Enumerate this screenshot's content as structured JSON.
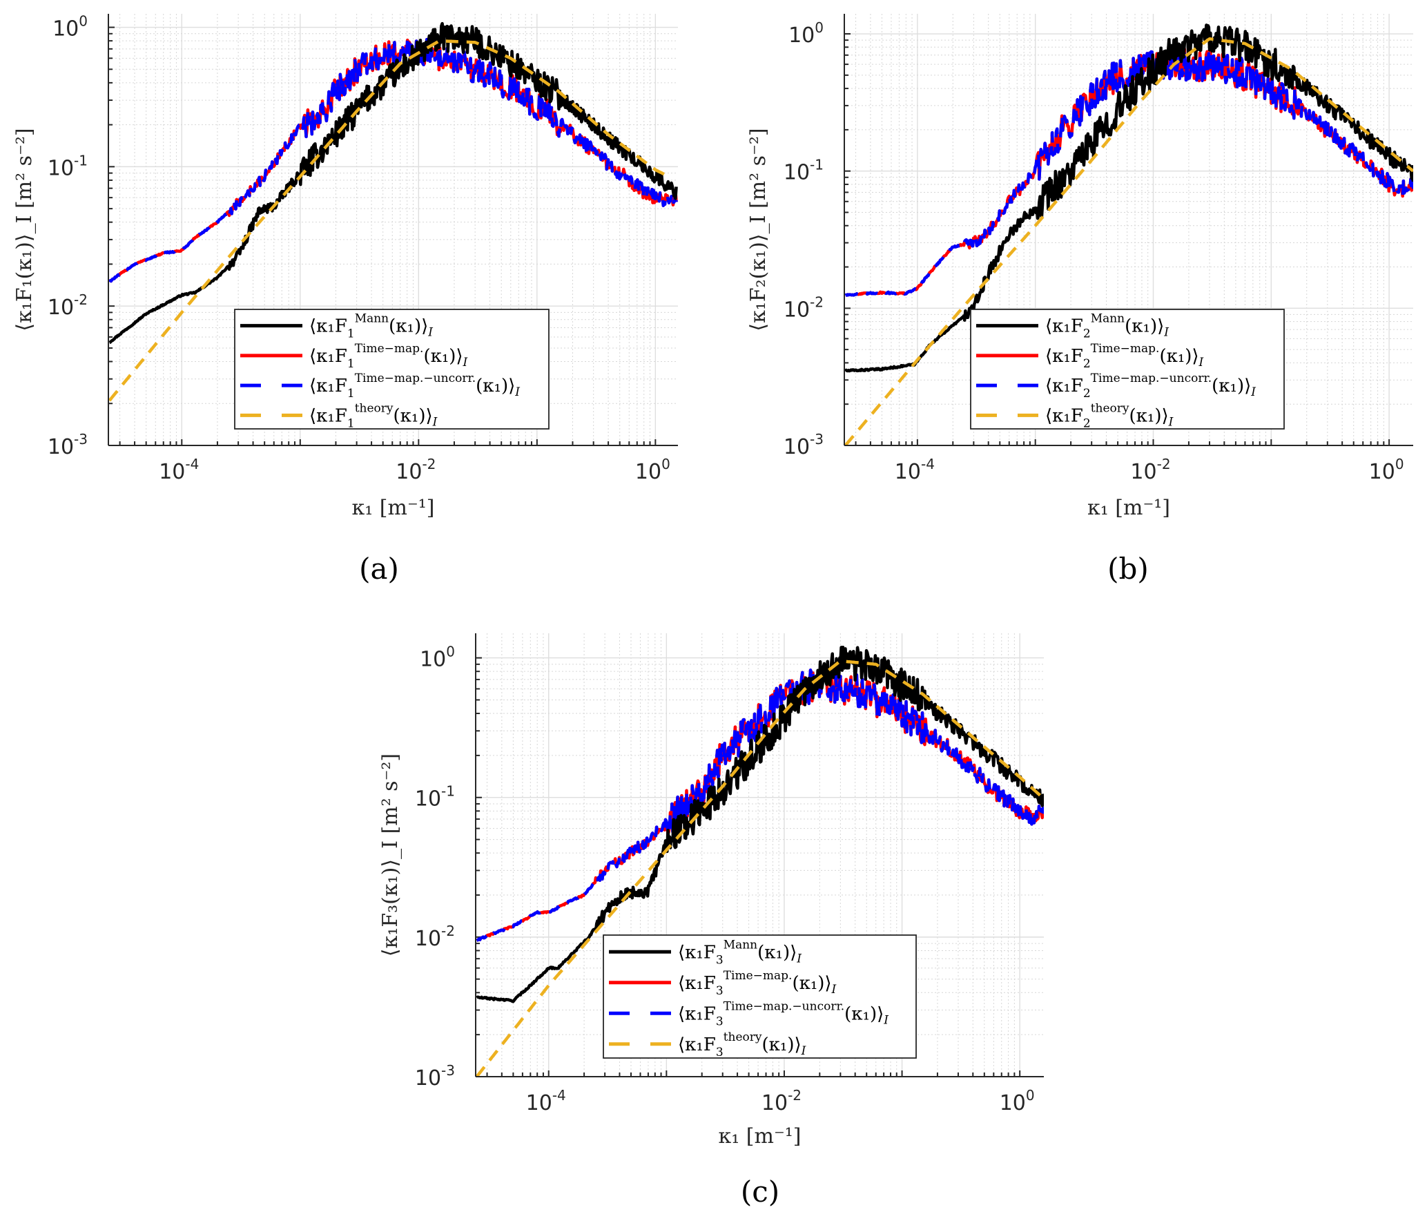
{
  "figure": {
    "captions": [
      "(a)",
      "(b)",
      "(c)"
    ]
  },
  "colors": {
    "mann": "#000000",
    "time_map": "#ff0000",
    "time_map_uncorr": "#0000ff",
    "theory": "#edb120",
    "grid": "#dedede",
    "axis": "#262626"
  },
  "chart_data": [
    {
      "type": "line",
      "panel": "a",
      "component": "1",
      "title": "",
      "xlabel": "κ₁ [m⁻¹]",
      "ylabel": "⟨κ₁F₁(κ₁)⟩_I [m² s⁻²]",
      "xscale": "log",
      "yscale": "log",
      "xlim": [
        2.4e-05,
        1.55
      ],
      "ylim": [
        0.001,
        1.25
      ],
      "xticks": [
        0.0001,
        0.01,
        1
      ],
      "xtick_labels": [
        {
          "base": "10",
          "exp": "-4"
        },
        {
          "base": "10",
          "exp": "-2"
        },
        {
          "base": "10",
          "exp": "0"
        }
      ],
      "yticks": [
        0.001,
        0.01,
        0.1,
        1
      ],
      "ytick_labels": [
        {
          "base": "10",
          "exp": "-3"
        },
        {
          "base": "10",
          "exp": "-2"
        },
        {
          "base": "10",
          "exp": "-1"
        },
        {
          "base": "10",
          "exp": "0"
        }
      ],
      "grid": true,
      "legend_position": "lower-center",
      "legend": [
        {
          "key": "mann",
          "style": "solid",
          "prefix": "⟨κ₁F",
          "sub": "1",
          "sup": "Mann",
          "suffix": "(κ₁)⟩",
          "subscript_i": "I"
        },
        {
          "key": "time_map",
          "style": "solid",
          "prefix": "⟨κ₁F",
          "sub": "1",
          "sup": "Time−map.",
          "suffix": "(κ₁)⟩",
          "subscript_i": "I"
        },
        {
          "key": "time_map_uncorr",
          "style": "dashed",
          "prefix": "⟨κ₁F",
          "sub": "1",
          "sup": "Time−map.−uncorr.",
          "suffix": "(κ₁)⟩",
          "subscript_i": "I"
        },
        {
          "key": "theory",
          "style": "dashed",
          "prefix": "⟨κ₁F",
          "sub": "1",
          "sup": "theory",
          "suffix": "(κ₁)⟩",
          "subscript_i": "I"
        }
      ],
      "series": [
        {
          "name": "Mann",
          "key": "mann",
          "noise": 0.1,
          "x": [
            2.45e-05,
            5e-05,
            0.0001,
            0.00013,
            0.0002,
            0.0003,
            0.00045,
            0.0006,
            0.001,
            0.002,
            0.004,
            0.008,
            0.015,
            0.03,
            0.06,
            0.15,
            0.4,
            1.0,
            1.5
          ],
          "y": [
            0.0055,
            0.0088,
            0.012,
            0.0125,
            0.016,
            0.023,
            0.048,
            0.052,
            0.09,
            0.17,
            0.33,
            0.55,
            0.85,
            0.8,
            0.55,
            0.33,
            0.16,
            0.085,
            0.065
          ]
        },
        {
          "name": "Time-map.",
          "key": "time_map",
          "noise": 0.1,
          "x": [
            2.45e-05,
            4e-05,
            7e-05,
            0.0001,
            0.00013,
            0.0002,
            0.0003,
            0.0005,
            0.0008,
            0.001,
            0.0015,
            0.002,
            0.003,
            0.005,
            0.01,
            0.015,
            0.03,
            0.06,
            0.15,
            0.4,
            0.8,
            1.2,
            1.5
          ],
          "y": [
            0.015,
            0.02,
            0.024,
            0.025,
            0.031,
            0.04,
            0.055,
            0.085,
            0.15,
            0.19,
            0.23,
            0.35,
            0.5,
            0.62,
            0.68,
            0.62,
            0.5,
            0.37,
            0.21,
            0.105,
            0.066,
            0.056,
            0.061
          ]
        },
        {
          "name": "Time-map.-uncorr.",
          "key": "time_map_uncorr",
          "noise": 0.1,
          "x": [
            2.45e-05,
            4e-05,
            7e-05,
            0.0001,
            0.00013,
            0.0002,
            0.0003,
            0.0005,
            0.0008,
            0.001,
            0.0015,
            0.002,
            0.003,
            0.005,
            0.01,
            0.015,
            0.03,
            0.06,
            0.15,
            0.4,
            0.8,
            1.2,
            1.5
          ],
          "y": [
            0.015,
            0.02,
            0.024,
            0.025,
            0.031,
            0.04,
            0.055,
            0.085,
            0.15,
            0.19,
            0.23,
            0.35,
            0.5,
            0.62,
            0.68,
            0.62,
            0.5,
            0.37,
            0.21,
            0.105,
            0.066,
            0.056,
            0.061
          ]
        },
        {
          "name": "theory",
          "key": "theory",
          "noise": 0,
          "x": [
            2.45e-05,
            0.0001,
            0.0003,
            0.001,
            0.003,
            0.007,
            0.015,
            0.03,
            0.06,
            0.15,
            0.4,
            1.0,
            1.3
          ],
          "y": [
            0.0021,
            0.009,
            0.027,
            0.085,
            0.25,
            0.55,
            0.8,
            0.78,
            0.6,
            0.35,
            0.17,
            0.095,
            0.085
          ]
        }
      ]
    },
    {
      "type": "line",
      "panel": "b",
      "component": "2",
      "title": "",
      "xlabel": "κ₁ [m⁻¹]",
      "ylabel": "⟨κ₁F₂(κ₁)⟩_I [m² s⁻²]",
      "xscale": "log",
      "yscale": "log",
      "xlim": [
        2.4e-05,
        1.6
      ],
      "ylim": [
        0.001,
        1.4
      ],
      "xticks": [
        0.0001,
        0.01,
        1
      ],
      "xtick_labels": [
        {
          "base": "10",
          "exp": "-4"
        },
        {
          "base": "10",
          "exp": "-2"
        },
        {
          "base": "10",
          "exp": "0"
        }
      ],
      "yticks": [
        0.001,
        0.01,
        0.1,
        1
      ],
      "ytick_labels": [
        {
          "base": "10",
          "exp": "-3"
        },
        {
          "base": "10",
          "exp": "-2"
        },
        {
          "base": "10",
          "exp": "-1"
        },
        {
          "base": "10",
          "exp": "0"
        }
      ],
      "grid": true,
      "legend_position": "lower-center",
      "legend": [
        {
          "key": "mann",
          "style": "solid",
          "prefix": "⟨κ₁F",
          "sub": "2",
          "sup": "Mann",
          "suffix": "(κ₁)⟩",
          "subscript_i": "I"
        },
        {
          "key": "time_map",
          "style": "solid",
          "prefix": "⟨κ₁F",
          "sub": "2",
          "sup": "Time−map.",
          "suffix": "(κ₁)⟩",
          "subscript_i": "I"
        },
        {
          "key": "time_map_uncorr",
          "style": "dashed",
          "prefix": "⟨κ₁F",
          "sub": "2",
          "sup": "Time−map.−uncorr.",
          "suffix": "(κ₁)⟩",
          "subscript_i": "I"
        },
        {
          "key": "theory",
          "style": "dashed",
          "prefix": "⟨κ₁F",
          "sub": "2",
          "sup": "theory",
          "suffix": "(κ₁)⟩",
          "subscript_i": "I"
        }
      ],
      "series": [
        {
          "name": "Mann",
          "key": "mann",
          "noise": 0.12,
          "x": [
            2.45e-05,
            5e-05,
            9.5e-05,
            0.00013,
            0.0002,
            0.0003,
            0.0004,
            0.0006,
            0.001,
            0.002,
            0.004,
            0.008,
            0.015,
            0.03,
            0.06,
            0.15,
            0.4,
            1.0,
            1.6
          ],
          "y": [
            0.0035,
            0.0036,
            0.0039,
            0.0055,
            0.0075,
            0.01,
            0.018,
            0.035,
            0.055,
            0.1,
            0.22,
            0.45,
            0.75,
            0.95,
            0.8,
            0.5,
            0.25,
            0.13,
            0.095
          ]
        },
        {
          "name": "Time-map.",
          "key": "time_map",
          "noise": 0.12,
          "x": [
            2.45e-05,
            5e-05,
            8e-05,
            0.0001,
            0.00014,
            0.0002,
            0.0003,
            0.0004,
            0.0006,
            0.001,
            0.0015,
            0.0025,
            0.004,
            0.008,
            0.015,
            0.03,
            0.06,
            0.15,
            0.4,
            0.8,
            1.2,
            1.6
          ],
          "y": [
            0.0125,
            0.013,
            0.0128,
            0.014,
            0.02,
            0.028,
            0.03,
            0.036,
            0.06,
            0.1,
            0.17,
            0.3,
            0.45,
            0.55,
            0.6,
            0.6,
            0.5,
            0.32,
            0.16,
            0.095,
            0.072,
            0.08
          ]
        },
        {
          "name": "Time-map.-uncorr.",
          "key": "time_map_uncorr",
          "noise": 0.12,
          "x": [
            2.45e-05,
            5e-05,
            8e-05,
            0.0001,
            0.00014,
            0.0002,
            0.0003,
            0.0004,
            0.0006,
            0.001,
            0.0015,
            0.0025,
            0.004,
            0.008,
            0.015,
            0.03,
            0.06,
            0.15,
            0.4,
            0.8,
            1.2,
            1.6
          ],
          "y": [
            0.0125,
            0.013,
            0.0128,
            0.014,
            0.02,
            0.028,
            0.03,
            0.036,
            0.06,
            0.1,
            0.17,
            0.3,
            0.45,
            0.55,
            0.6,
            0.6,
            0.5,
            0.32,
            0.16,
            0.095,
            0.072,
            0.08
          ]
        },
        {
          "name": "theory",
          "key": "theory",
          "noise": 0,
          "x": [
            2.45e-05,
            0.0001,
            0.0003,
            0.001,
            0.003,
            0.008,
            0.015,
            0.03,
            0.06,
            0.15,
            0.4,
            1.0,
            1.6
          ],
          "y": [
            0.001,
            0.0042,
            0.0125,
            0.04,
            0.12,
            0.33,
            0.6,
            0.92,
            0.85,
            0.55,
            0.27,
            0.14,
            0.1
          ]
        }
      ]
    },
    {
      "type": "line",
      "panel": "c",
      "component": "3",
      "title": "",
      "xlabel": "κ₁ [m⁻¹]",
      "ylabel": "⟨κ₁F₃(κ₁)⟩_I [m² s⁻²]",
      "xscale": "log",
      "yscale": "log",
      "xlim": [
        2.4e-05,
        1.6
      ],
      "ylim": [
        0.001,
        1.5
      ],
      "xticks": [
        0.0001,
        0.01,
        1
      ],
      "xtick_labels": [
        {
          "base": "10",
          "exp": "-4"
        },
        {
          "base": "10",
          "exp": "-2"
        },
        {
          "base": "10",
          "exp": "0"
        }
      ],
      "yticks": [
        0.001,
        0.01,
        0.1,
        1
      ],
      "ytick_labels": [
        {
          "base": "10",
          "exp": "-3"
        },
        {
          "base": "10",
          "exp": "-2"
        },
        {
          "base": "10",
          "exp": "-1"
        },
        {
          "base": "10",
          "exp": "0"
        }
      ],
      "grid": true,
      "legend_position": "lower-center",
      "legend": [
        {
          "key": "mann",
          "style": "solid",
          "prefix": "⟨κ₁F",
          "sub": "3",
          "sup": "Mann",
          "suffix": "(κ₁)⟩",
          "subscript_i": "I"
        },
        {
          "key": "time_map",
          "style": "solid",
          "prefix": "⟨κ₁F",
          "sub": "3",
          "sup": "Time−map.",
          "suffix": "(κ₁)⟩",
          "subscript_i": "I"
        },
        {
          "key": "time_map_uncorr",
          "style": "dashed",
          "prefix": "⟨κ₁F",
          "sub": "3",
          "sup": "Time−map.−uncorr.",
          "suffix": "(κ₁)⟩",
          "subscript_i": "I"
        },
        {
          "key": "theory",
          "style": "dashed",
          "prefix": "⟨κ₁F",
          "sub": "3",
          "sup": "theory",
          "suffix": "(κ₁)⟩",
          "subscript_i": "I"
        }
      ],
      "series": [
        {
          "name": "Mann",
          "key": "mann",
          "noise": 0.12,
          "x": [
            2.45e-05,
            5e-05,
            7e-05,
            0.0001,
            0.00012,
            0.00022,
            0.00035,
            0.0005,
            0.0007,
            0.001,
            0.002,
            0.004,
            0.008,
            0.015,
            0.03,
            0.06,
            0.15,
            0.4,
            1.0,
            1.6
          ],
          "y": [
            0.0037,
            0.0035,
            0.0045,
            0.006,
            0.006,
            0.01,
            0.018,
            0.021,
            0.021,
            0.05,
            0.08,
            0.15,
            0.3,
            0.6,
            0.95,
            0.85,
            0.5,
            0.25,
            0.13,
            0.095
          ]
        },
        {
          "name": "Time-map.",
          "key": "time_map",
          "noise": 0.12,
          "x": [
            2.45e-05,
            5e-05,
            8e-05,
            0.0001,
            0.00015,
            0.0002,
            0.0003,
            0.0005,
            0.0007,
            0.001,
            0.002,
            0.003,
            0.005,
            0.01,
            0.02,
            0.04,
            0.1,
            0.3,
            0.7,
            1.2,
            1.6
          ],
          "y": [
            0.0095,
            0.012,
            0.015,
            0.015,
            0.018,
            0.02,
            0.03,
            0.04,
            0.05,
            0.065,
            0.11,
            0.2,
            0.3,
            0.55,
            0.65,
            0.6,
            0.4,
            0.2,
            0.1,
            0.072,
            0.08
          ]
        },
        {
          "name": "Time-map.-uncorr.",
          "key": "time_map_uncorr",
          "noise": 0.12,
          "x": [
            2.45e-05,
            5e-05,
            8e-05,
            0.0001,
            0.00015,
            0.0002,
            0.0003,
            0.0005,
            0.0007,
            0.001,
            0.002,
            0.003,
            0.005,
            0.01,
            0.02,
            0.04,
            0.1,
            0.3,
            0.7,
            1.2,
            1.6
          ],
          "y": [
            0.0095,
            0.012,
            0.015,
            0.015,
            0.018,
            0.02,
            0.03,
            0.04,
            0.05,
            0.065,
            0.11,
            0.2,
            0.3,
            0.55,
            0.65,
            0.6,
            0.4,
            0.2,
            0.1,
            0.072,
            0.08
          ]
        },
        {
          "name": "theory",
          "key": "theory",
          "noise": 0,
          "x": [
            2.45e-05,
            0.0001,
            0.0003,
            0.001,
            0.003,
            0.008,
            0.015,
            0.03,
            0.06,
            0.15,
            0.4,
            1.0,
            1.6
          ],
          "y": [
            0.001,
            0.0045,
            0.013,
            0.042,
            0.12,
            0.33,
            0.6,
            0.95,
            0.9,
            0.55,
            0.27,
            0.14,
            0.098
          ]
        }
      ]
    }
  ]
}
